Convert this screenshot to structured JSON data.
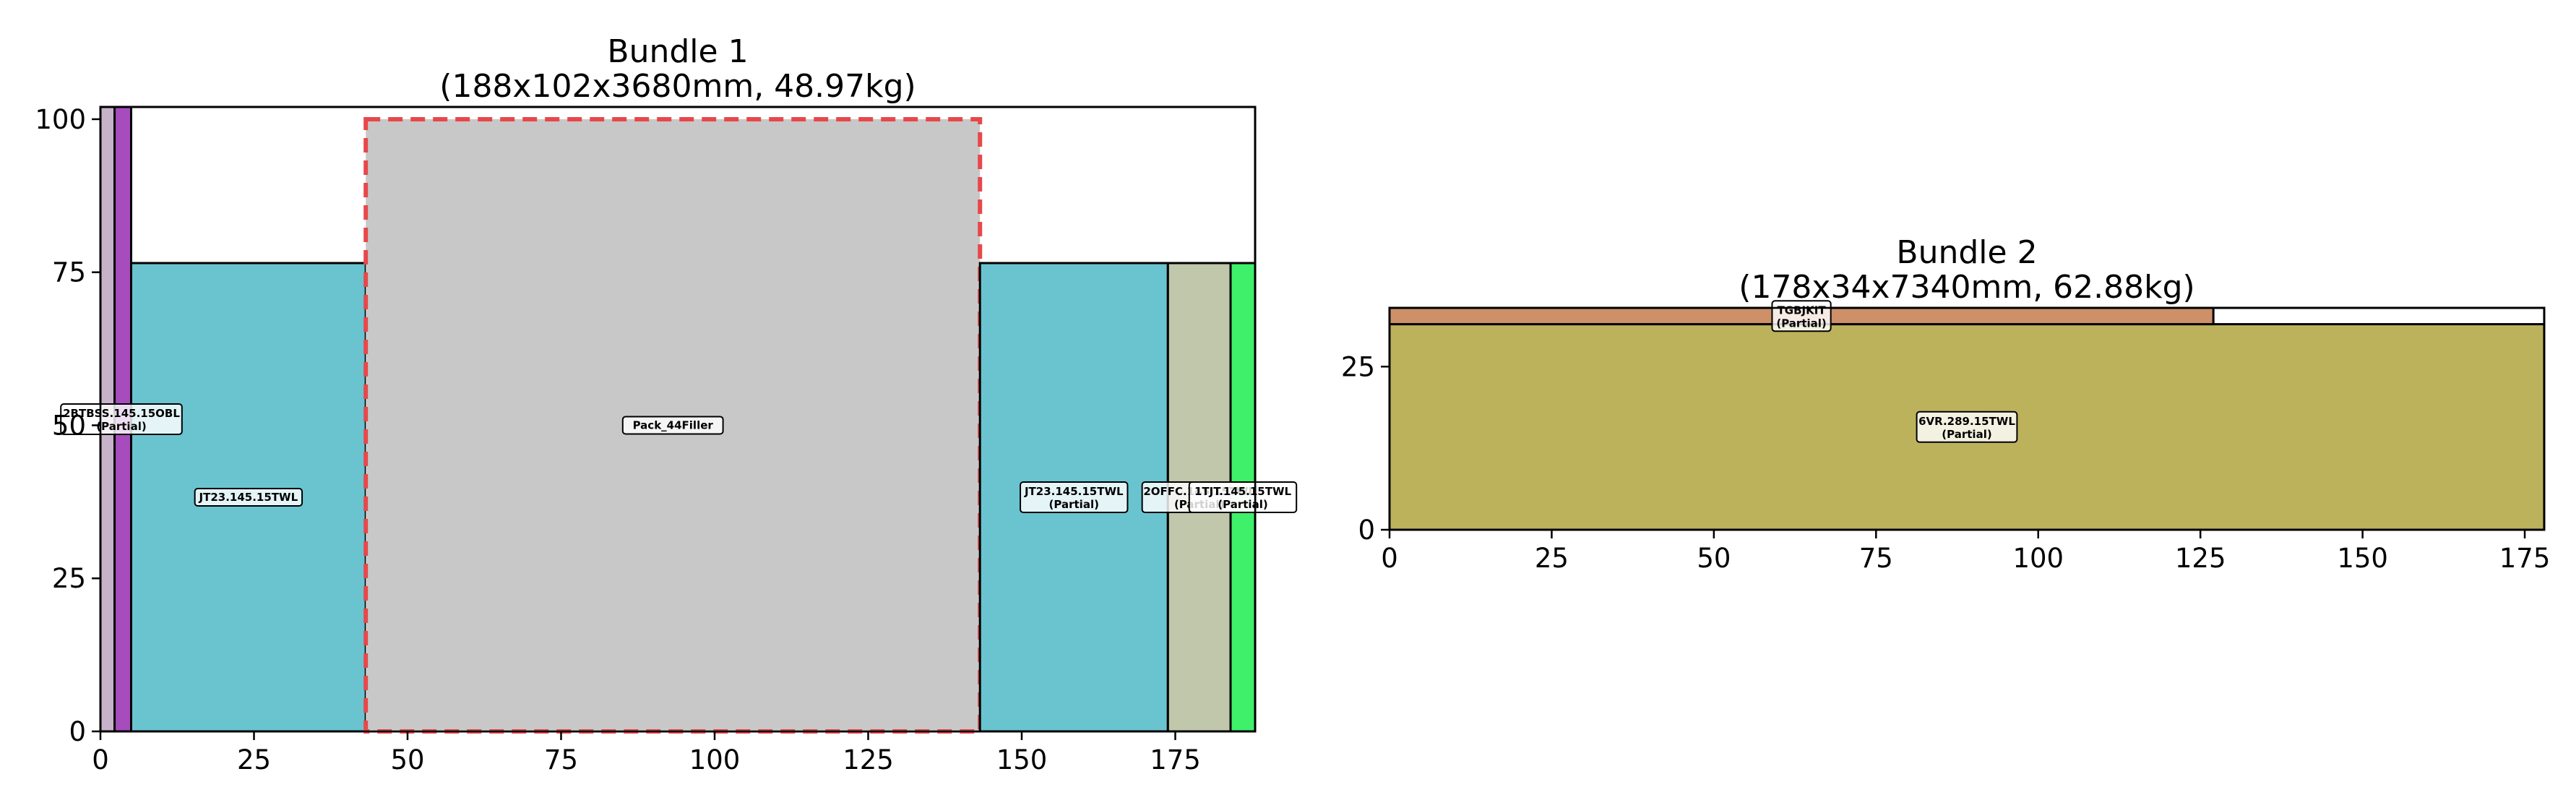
{
  "chart_data": [
    {
      "type": "bar",
      "title": "Bundle 1",
      "subtitle": "(188x102x3680mm, 48.97kg)",
      "xlim": [
        0,
        188
      ],
      "ylim": [
        0,
        102
      ],
      "xticks": [
        0,
        25,
        50,
        75,
        100,
        125,
        150,
        175
      ],
      "yticks": [
        0,
        25,
        50,
        75,
        100
      ],
      "grid": false,
      "outline": {
        "x": 0,
        "width": 188,
        "height": 102
      },
      "pieces": [
        {
          "label": "2BTBSS.145.15OBL",
          "sublabel": "(Partial)",
          "x": 0,
          "width": 2.3,
          "y": 0,
          "height": 102,
          "color": "#c7b3c9",
          "dashed": false
        },
        {
          "label": "",
          "sublabel": "",
          "x": 2.3,
          "width": 2.7,
          "y": 0,
          "height": 102,
          "color": "#a64cbd",
          "dashed": false
        },
        {
          "label": "JT23.145.15TWL",
          "sublabel": "",
          "x": 5,
          "width": 38.2,
          "y": 0,
          "height": 76.5,
          "color": "#6ac4d0",
          "dashed": false
        },
        {
          "label": "Pack_44Filler",
          "sublabel": "",
          "x": 43.2,
          "width": 100,
          "y": 0,
          "height": 100,
          "color": "#c8c8c8",
          "dashed": true
        },
        {
          "label": "JT23.145.15TWL",
          "sublabel": "(Partial)",
          "x": 143.2,
          "width": 30.6,
          "y": 0,
          "height": 76.5,
          "color": "#6ac4d0",
          "dashed": false
        },
        {
          "label": "2OFFC.145.15TWL",
          "sublabel": "(Partial)",
          "x": 173.8,
          "width": 10.2,
          "y": 0,
          "height": 76.5,
          "color": "#c1c7aa",
          "dashed": false
        },
        {
          "label": "1TJT.145.15TWL",
          "sublabel": "(Partial)",
          "x": 184,
          "width": 4,
          "y": 0,
          "height": 76.5,
          "color": "#3ef06a",
          "dashed": false
        }
      ]
    },
    {
      "type": "bar",
      "title": "Bundle 2",
      "subtitle": "(178x34x7340mm, 62.88kg)",
      "xlim": [
        0,
        178
      ],
      "ylim": [
        0,
        34
      ],
      "xticks": [
        0,
        25,
        50,
        75,
        100,
        125,
        150,
        175
      ],
      "yticks": [
        0,
        25
      ],
      "grid": false,
      "outline": {
        "x": 0,
        "width": 178,
        "height": 34
      },
      "pieces": [
        {
          "label": "6VR.289.15TWL",
          "sublabel": "(Partial)",
          "x": 0,
          "width": 178,
          "y": 0,
          "height": 31.5,
          "color": "#bdb25c",
          "dashed": false
        },
        {
          "label": "TGBJKIT",
          "sublabel": "(Partial)",
          "x": 0,
          "width": 127,
          "y": 31.5,
          "height": 2.5,
          "color": "#cd9069",
          "dashed": false
        }
      ]
    }
  ]
}
